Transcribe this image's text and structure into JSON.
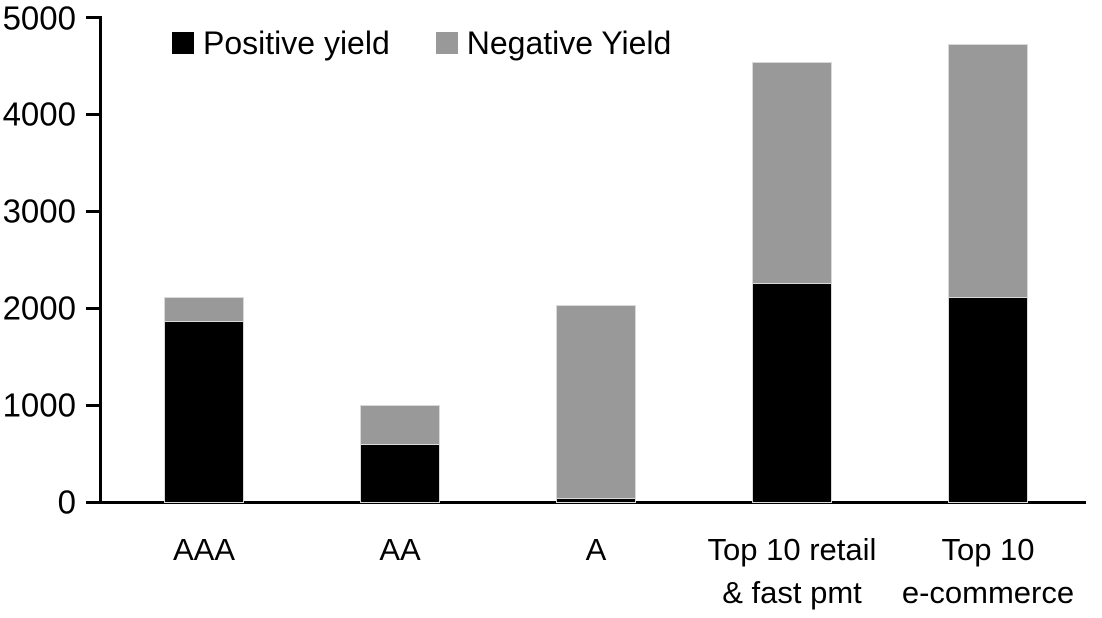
{
  "chart_data": {
    "type": "bar",
    "stacked": true,
    "title": "",
    "xlabel": "",
    "ylabel": "",
    "categories": [
      "AAA",
      "AA",
      "A",
      "Top 10 retail & fast pmt",
      "Top 10 e-commerce"
    ],
    "category_label_lines": [
      [
        "AAA"
      ],
      [
        "AA"
      ],
      [
        "A"
      ],
      [
        "Top 10 retail",
        "& fast pmt"
      ],
      [
        "Top 10",
        "e-commerce"
      ]
    ],
    "series": [
      {
        "name": "Positive yield",
        "color": "#000000",
        "values": [
          1870,
          600,
          45,
          2260,
          2120
        ]
      },
      {
        "name": "Negative Yield",
        "color": "#999999",
        "values": [
          240,
          390,
          1975,
          2270,
          2600
        ]
      }
    ],
    "totals": [
      2110,
      990,
      2020,
      4530,
      4720
    ],
    "ylim": [
      0,
      5000
    ],
    "yticks": [
      0,
      1000,
      2000,
      3000,
      4000,
      5000
    ],
    "grid": false,
    "legend_position": "top",
    "axis_color": "#000000",
    "background_color": "#ffffff"
  }
}
